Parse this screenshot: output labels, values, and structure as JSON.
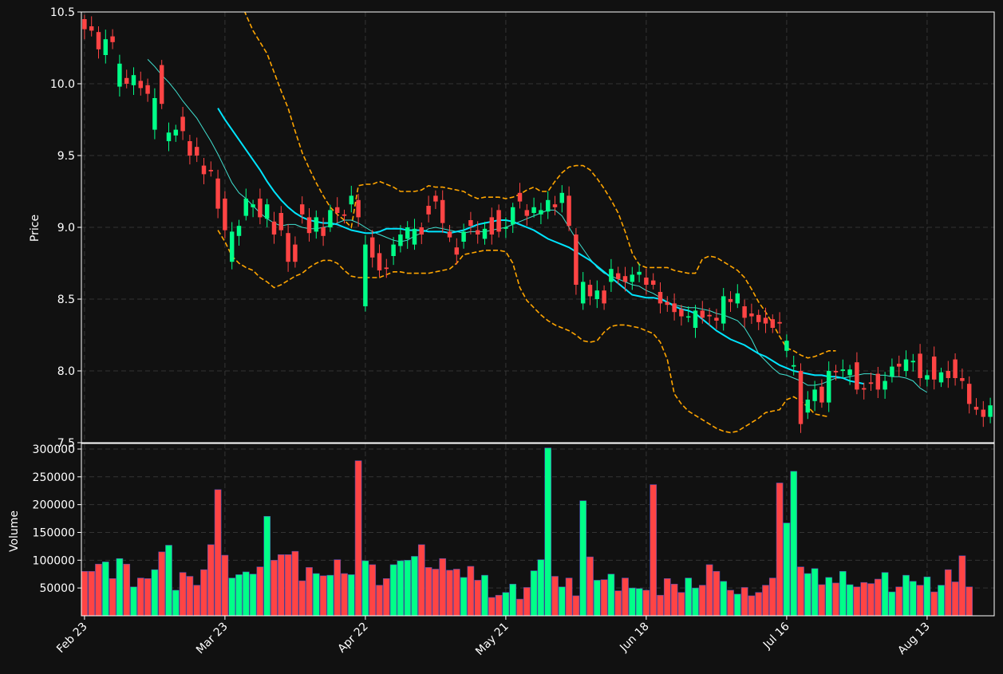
{
  "chart_data": {
    "type": "candlestick",
    "colors": {
      "background": "#111111",
      "up": "#00ff88",
      "down": "#ff4444",
      "ma_fast": "#40e0d0",
      "ma_slow": "#00e5ff",
      "bollinger": "#ffa500",
      "grid": "#444444"
    },
    "price_panel": {
      "ylabel": "Price",
      "ylim": [
        7.5,
        10.5
      ],
      "yticks": [
        "7.5",
        "8.0",
        "8.5",
        "9.0",
        "9.5",
        "10.0",
        "10.5"
      ],
      "grid": true
    },
    "volume_panel": {
      "ylabel": "Volume",
      "ylim": [
        0,
        310000
      ],
      "yticks": [
        "50000",
        "100000",
        "150000",
        "200000",
        "250000",
        "300000"
      ],
      "grid": true
    },
    "x_ticks": [
      {
        "label": "Feb 23",
        "index": 0
      },
      {
        "label": "Mar 23",
        "index": 20
      },
      {
        "label": "Apr 22",
        "index": 40
      },
      {
        "label": "May 21",
        "index": 60
      },
      {
        "label": "Jun 18",
        "index": 80
      },
      {
        "label": "Jul 16",
        "index": 100
      },
      {
        "label": "Aug 13",
        "index": 120
      }
    ],
    "candles": [
      [
        10.45,
        10.38
      ],
      [
        10.4,
        10.37
      ],
      [
        10.36,
        10.24
      ],
      [
        10.2,
        10.31
      ],
      [
        10.33,
        10.29
      ],
      [
        9.98,
        10.14
      ],
      [
        10.04,
        10.0
      ],
      [
        9.99,
        10.06
      ],
      [
        10.02,
        9.97
      ],
      [
        9.99,
        9.93
      ],
      [
        9.68,
        9.9
      ],
      [
        10.13,
        9.86
      ],
      [
        9.6,
        9.66
      ],
      [
        9.64,
        9.68
      ],
      [
        9.77,
        9.67
      ],
      [
        9.6,
        9.5
      ],
      [
        9.56,
        9.5
      ],
      [
        9.43,
        9.37
      ],
      [
        9.4,
        9.39
      ],
      [
        9.34,
        9.13
      ],
      [
        9.2,
        8.98
      ],
      [
        8.76,
        8.97
      ],
      [
        8.94,
        9.01
      ],
      [
        9.08,
        9.2
      ],
      [
        9.14,
        9.16
      ],
      [
        9.2,
        9.07
      ],
      [
        9.06,
        9.16
      ],
      [
        9.04,
        8.95
      ],
      [
        9.1,
        8.98
      ],
      [
        8.96,
        8.76
      ],
      [
        8.88,
        8.76
      ],
      [
        9.16,
        9.09
      ],
      [
        9.07,
        8.96
      ],
      [
        8.97,
        9.07
      ],
      [
        9.0,
        8.94
      ],
      [
        9.0,
        9.12
      ],
      [
        9.14,
        9.1
      ],
      [
        9.09,
        9.08
      ],
      [
        9.16,
        9.22
      ],
      [
        9.19,
        9.07
      ],
      [
        8.45,
        8.88
      ],
      [
        8.93,
        8.79
      ],
      [
        8.82,
        8.7
      ],
      [
        8.72,
        8.71
      ],
      [
        8.8,
        8.88
      ],
      [
        8.87,
        8.95
      ],
      [
        8.92,
        9.0
      ],
      [
        8.88,
        8.99
      ],
      [
        9.0,
        8.95
      ],
      [
        9.15,
        9.09
      ],
      [
        9.22,
        9.18
      ],
      [
        9.19,
        9.03
      ],
      [
        8.97,
        8.93
      ],
      [
        8.86,
        8.81
      ],
      [
        8.9,
        8.97
      ],
      [
        9.05,
        9.01
      ],
      [
        8.98,
        8.95
      ],
      [
        8.92,
        8.99
      ],
      [
        9.07,
        8.95
      ],
      [
        9.12,
        8.97
      ],
      [
        8.99,
        9.0
      ],
      [
        9.02,
        9.14
      ],
      [
        9.24,
        9.18
      ],
      [
        9.12,
        9.08
      ],
      [
        9.1,
        9.14
      ],
      [
        9.09,
        9.12
      ],
      [
        9.11,
        9.19
      ],
      [
        9.16,
        9.14
      ],
      [
        9.17,
        9.24
      ],
      [
        9.22,
        9.01
      ],
      [
        8.95,
        8.6
      ],
      [
        8.47,
        8.62
      ],
      [
        8.6,
        8.52
      ],
      [
        8.5,
        8.56
      ],
      [
        8.56,
        8.47
      ],
      [
        8.62,
        8.71
      ],
      [
        8.68,
        8.64
      ],
      [
        8.66,
        8.62
      ],
      [
        8.62,
        8.67
      ],
      [
        8.67,
        8.69
      ],
      [
        8.65,
        8.6
      ],
      [
        8.63,
        8.6
      ],
      [
        8.55,
        8.47
      ],
      [
        8.48,
        8.46
      ],
      [
        8.47,
        8.41
      ],
      [
        8.43,
        8.38
      ],
      [
        8.38,
        8.38
      ],
      [
        8.3,
        8.42
      ],
      [
        8.42,
        8.37
      ],
      [
        8.39,
        8.38
      ],
      [
        8.37,
        8.35
      ],
      [
        8.33,
        8.52
      ],
      [
        8.5,
        8.48
      ],
      [
        8.47,
        8.54
      ],
      [
        8.45,
        8.37
      ],
      [
        8.4,
        8.38
      ],
      [
        8.39,
        8.34
      ],
      [
        8.37,
        8.33
      ],
      [
        8.36,
        8.3
      ],
      [
        8.34,
        8.33
      ],
      [
        8.14,
        8.21
      ],
      [
        8.03,
        8.04
      ],
      [
        8.0,
        7.63
      ],
      [
        7.71,
        7.8
      ],
      [
        7.79,
        7.87
      ],
      [
        7.89,
        7.78
      ],
      [
        7.78,
        8.0
      ],
      [
        8.0,
        7.99
      ],
      [
        8.0,
        8.01
      ],
      [
        7.97,
        8.01
      ],
      [
        8.06,
        7.87
      ],
      [
        7.88,
        7.87
      ],
      [
        7.92,
        7.91
      ],
      [
        7.98,
        7.87
      ],
      [
        7.87,
        7.93
      ],
      [
        7.96,
        8.03
      ],
      [
        8.05,
        8.03
      ],
      [
        8.0,
        8.08
      ],
      [
        8.06,
        8.07
      ],
      [
        8.12,
        7.95
      ],
      [
        7.94,
        7.97
      ],
      [
        8.1,
        7.94
      ],
      [
        7.92,
        7.99
      ],
      [
        8.0,
        7.95
      ],
      [
        8.08,
        7.95
      ],
      [
        7.95,
        7.93
      ],
      [
        7.91,
        7.77
      ],
      [
        7.75,
        7.73
      ],
      [
        7.73,
        7.68
      ],
      [
        7.68,
        7.76
      ]
    ],
    "volumes": [
      80000,
      80000,
      93000,
      97000,
      67000,
      103000,
      93000,
      52000,
      68000,
      67000,
      83000,
      115000,
      127000,
      46000,
      78000,
      71000,
      55000,
      83000,
      128000,
      227000,
      109000,
      68000,
      74000,
      79000,
      75000,
      88000,
      179000,
      100000,
      110000,
      110000,
      116000,
      63000,
      87000,
      76000,
      72000,
      73000,
      101000,
      76000,
      74000,
      279000,
      99000,
      92000,
      55000,
      67000,
      92000,
      99000,
      100000,
      107000,
      128000,
      87000,
      84000,
      103000,
      82000,
      84000,
      69000,
      89000,
      64000,
      73000,
      33000,
      37000,
      42000,
      57000,
      30000,
      51000,
      81000,
      101000,
      302000,
      71000,
      52000,
      68000,
      36000,
      207000,
      106000,
      64000,
      65000,
      75000,
      45000,
      68000,
      50000,
      49000,
      46000,
      236000,
      37000,
      67000,
      57000,
      42000,
      68000,
      50000,
      55000,
      92000,
      80000,
      62000,
      46000,
      39000,
      51000,
      36000,
      42000,
      55000,
      68000,
      239000,
      167000,
      260000,
      88000,
      76000,
      85000,
      56000,
      69000,
      59000,
      80000,
      56000,
      52000,
      60000,
      58000,
      66000,
      78000,
      43000,
      52000,
      73000,
      62000,
      55000,
      70000,
      43000,
      55000,
      83000,
      61000,
      108000,
      52000
    ],
    "ma_fast": {
      "start": 9,
      "values": [
        10.17,
        10.12,
        10.06,
        10.01,
        9.95,
        9.88,
        9.82,
        9.76,
        9.68,
        9.6,
        9.51,
        9.41,
        9.31,
        9.24,
        9.2,
        9.15,
        9.1,
        9.06,
        9.03,
        9.01,
        9.02,
        9.02,
        9.0,
        8.99,
        8.99,
        9.0,
        9.01,
        9.03,
        9.05,
        9.05,
        9.03,
        9.0,
        8.97,
        8.95,
        8.93,
        8.91,
        8.9,
        8.91,
        8.94,
        8.96,
        8.99,
        9.0,
        8.99,
        8.98,
        8.97,
        8.96,
        8.97,
        8.97,
        8.97,
        8.98,
        8.99,
        9.0,
        9.02,
        9.04,
        9.06,
        9.08,
        9.1,
        9.12,
        9.12,
        9.08,
        9.0,
        8.92,
        8.85,
        8.78,
        8.72,
        8.68,
        8.66,
        8.64,
        8.62,
        8.6,
        8.59,
        8.56,
        8.54,
        8.51,
        8.48,
        8.46,
        8.45,
        8.44,
        8.44,
        8.43,
        8.42,
        8.4,
        8.39,
        8.37,
        8.35,
        8.3,
        8.22,
        8.12,
        8.07,
        8.02,
        7.98,
        7.97,
        7.95,
        7.93,
        7.9,
        7.9,
        7.91,
        7.93,
        7.95,
        7.95,
        7.96,
        7.97,
        7.98,
        7.98,
        7.97,
        7.97,
        7.96,
        7.96,
        7.95,
        7.93,
        7.88,
        7.85
      ]
    },
    "ma_slow": {
      "start": 19,
      "values": [
        9.83,
        9.75,
        9.68,
        9.61,
        9.54,
        9.47,
        9.4,
        9.32,
        9.25,
        9.19,
        9.14,
        9.1,
        9.07,
        9.05,
        9.04,
        9.03,
        9.03,
        9.02,
        9.0,
        8.98,
        8.97,
        8.96,
        8.96,
        8.97,
        8.99,
        8.99,
        8.99,
        8.98,
        8.98,
        8.98,
        8.97,
        8.97,
        8.97,
        8.96,
        8.97,
        8.98,
        9.0,
        9.02,
        9.03,
        9.04,
        9.05,
        9.05,
        9.04,
        9.02,
        9.0,
        8.98,
        8.95,
        8.92,
        8.9,
        8.88,
        8.86,
        8.83,
        8.8,
        8.77,
        8.73,
        8.69,
        8.65,
        8.61,
        8.57,
        8.53,
        8.52,
        8.51,
        8.51,
        8.5,
        8.48,
        8.45,
        8.43,
        8.42,
        8.4,
        8.36,
        8.32,
        8.28,
        8.25,
        8.22,
        8.2,
        8.18,
        8.15,
        8.12,
        8.1,
        8.07,
        8.04,
        8.02,
        8.0,
        7.99,
        7.98,
        7.97,
        7.97,
        7.96,
        7.96,
        7.95,
        7.93,
        7.92,
        7.91
      ]
    },
    "bb_upper": {
      "start": 19,
      "values": [
        10.92,
        10.82,
        10.7,
        10.6,
        10.48,
        10.37,
        10.29,
        10.21,
        10.08,
        9.95,
        9.83,
        9.67,
        9.52,
        9.41,
        9.31,
        9.22,
        9.14,
        9.09,
        9.05,
        9.0,
        9.29,
        9.3,
        9.3,
        9.32,
        9.3,
        9.28,
        9.25,
        9.25,
        9.25,
        9.26,
        9.29,
        9.28,
        9.28,
        9.27,
        9.26,
        9.25,
        9.22,
        9.2,
        9.21,
        9.21,
        9.21,
        9.2,
        9.21,
        9.23,
        9.26,
        9.28,
        9.25,
        9.25,
        9.32,
        9.38,
        9.42,
        9.43,
        9.43,
        9.4,
        9.34,
        9.27,
        9.19,
        9.1,
        8.97,
        8.82,
        8.74,
        8.72,
        8.72,
        8.72,
        8.72,
        8.7,
        8.69,
        8.68,
        8.68,
        8.78,
        8.8,
        8.79,
        8.76,
        8.73,
        8.7,
        8.65,
        8.57,
        8.48,
        8.41,
        8.33,
        8.24,
        8.16,
        8.14,
        8.11,
        8.09,
        8.1,
        8.12,
        8.14,
        8.14
      ]
    },
    "bb_lower": {
      "start": 19,
      "values": [
        8.98,
        8.9,
        8.8,
        8.75,
        8.72,
        8.7,
        8.65,
        8.62,
        8.58,
        8.6,
        8.63,
        8.66,
        8.68,
        8.72,
        8.75,
        8.77,
        8.77,
        8.75,
        8.7,
        8.66,
        8.65,
        8.65,
        8.65,
        8.65,
        8.67,
        8.69,
        8.69,
        8.68,
        8.68,
        8.68,
        8.68,
        8.69,
        8.7,
        8.71,
        8.75,
        8.81,
        8.82,
        8.83,
        8.84,
        8.84,
        8.84,
        8.83,
        8.75,
        8.58,
        8.49,
        8.44,
        8.39,
        8.35,
        8.32,
        8.3,
        8.28,
        8.25,
        8.21,
        8.2,
        8.21,
        8.27,
        8.31,
        8.32,
        8.32,
        8.31,
        8.3,
        8.28,
        8.26,
        8.2,
        8.08,
        7.84,
        7.77,
        7.72,
        7.69,
        7.66,
        7.63,
        7.6,
        7.58,
        7.57,
        7.58,
        7.61,
        7.64,
        7.67,
        7.71,
        7.72,
        7.73,
        7.8,
        7.82,
        7.79,
        7.75,
        7.7,
        7.69,
        7.68
      ]
    }
  }
}
